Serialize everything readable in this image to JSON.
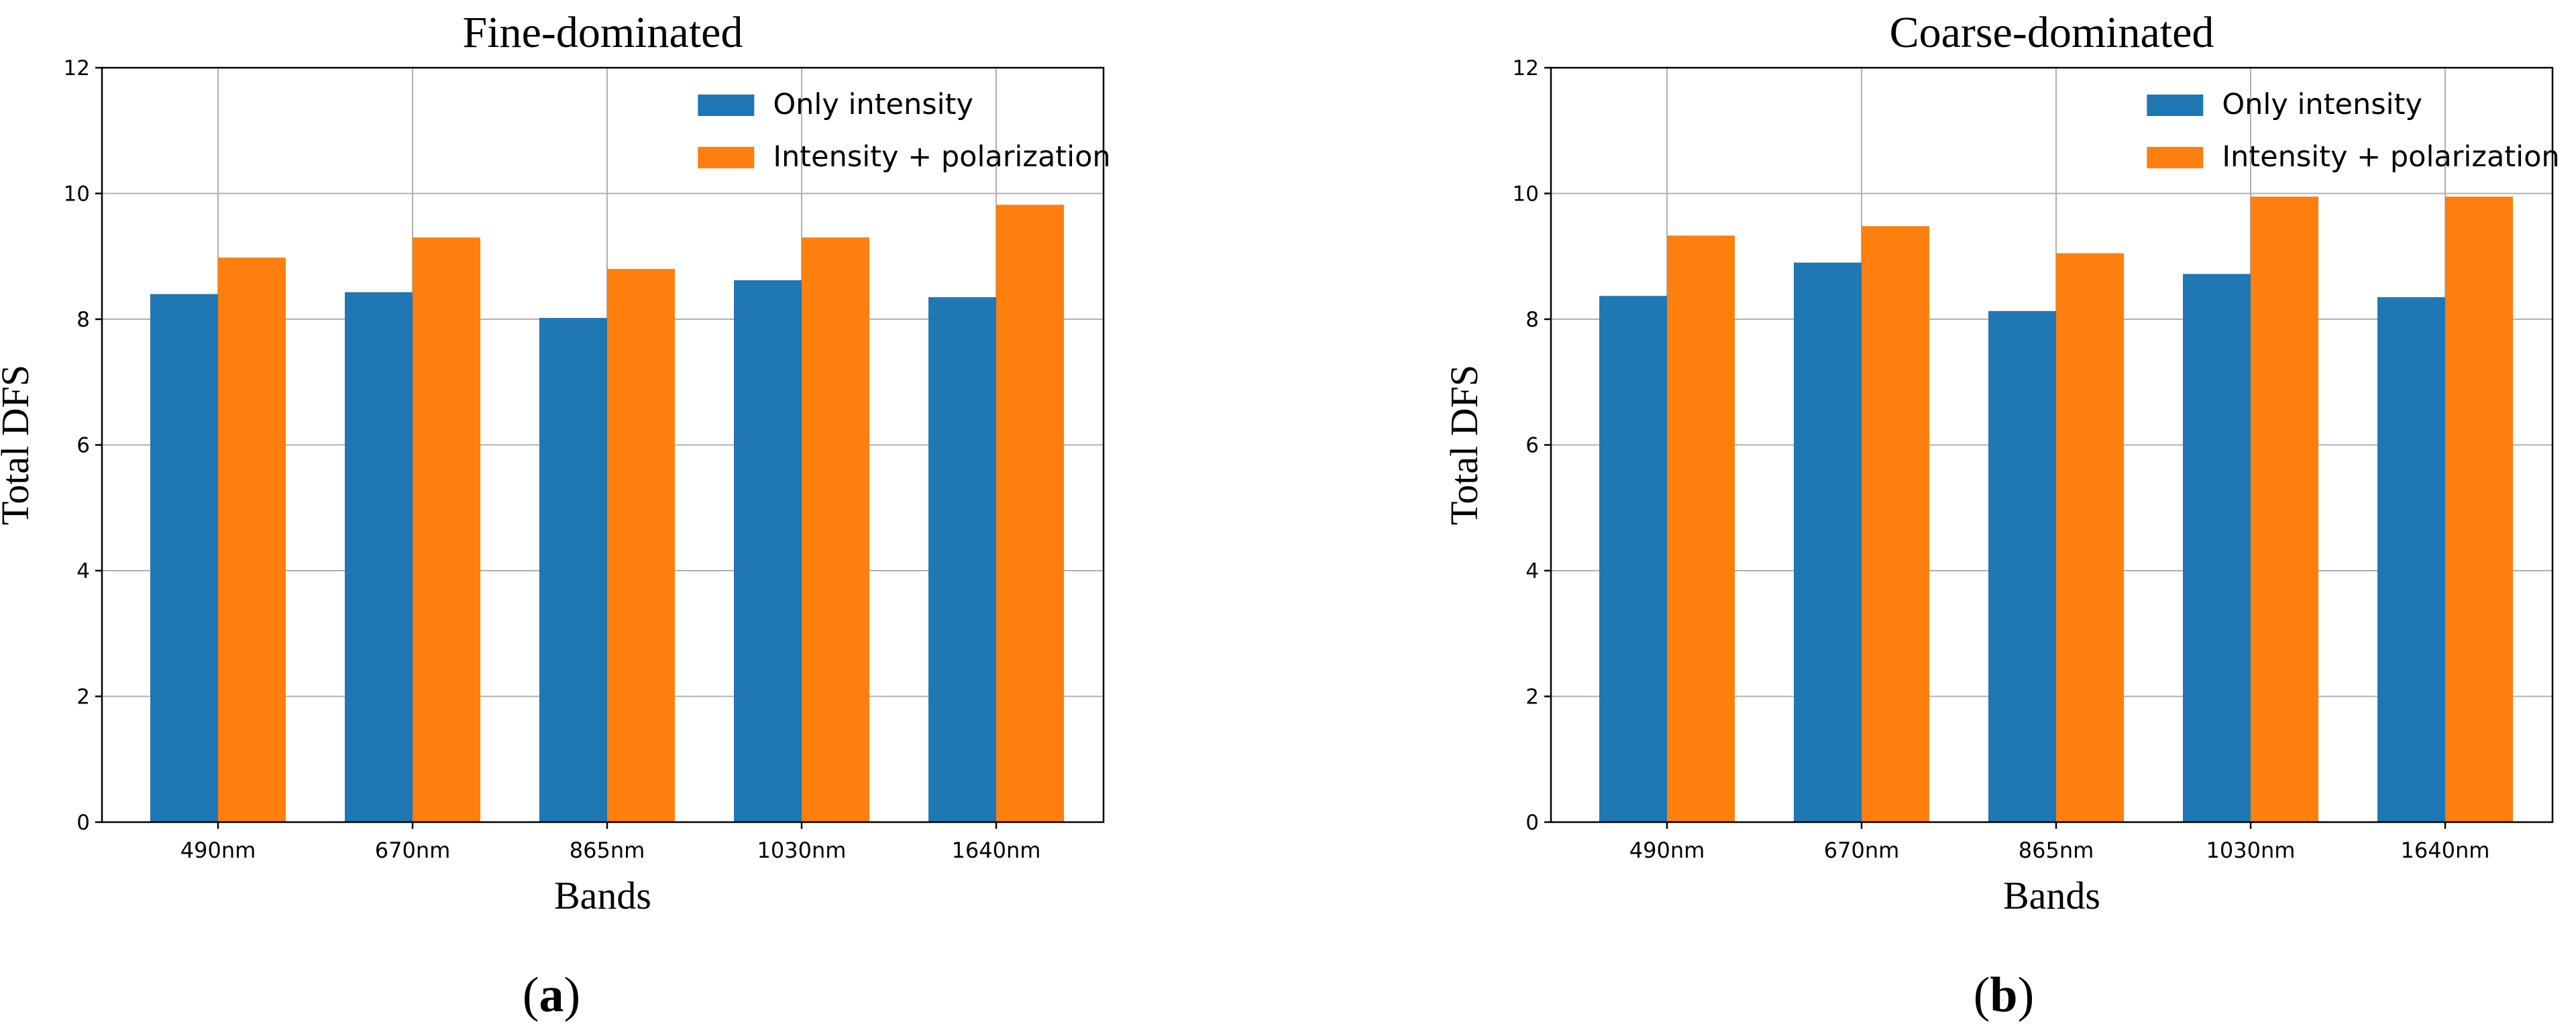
{
  "chart_data": [
    {
      "type": "bar",
      "title": "Fine-dominated",
      "xlabel": "Bands",
      "ylabel": "Total DFS",
      "ylim": [
        0,
        12
      ],
      "yticks": [
        0,
        2,
        4,
        6,
        8,
        10,
        12
      ],
      "grid": true,
      "legend_position": "top-right",
      "categories": [
        "490nm",
        "670nm",
        "865nm",
        "1030nm",
        "1640nm"
      ],
      "series": [
        {
          "name": "Only intensity",
          "color": "#1f77b4",
          "values": [
            8.4,
            8.43,
            8.02,
            8.62,
            8.35
          ]
        },
        {
          "name": "Intensity + polarization",
          "color": "#ff7f0e",
          "values": [
            8.98,
            9.3,
            8.8,
            9.3,
            9.82
          ]
        }
      ],
      "caption": "(a)"
    },
    {
      "type": "bar",
      "title": "Coarse-dominated",
      "xlabel": "Bands",
      "ylabel": "Total DFS",
      "ylim": [
        0,
        12
      ],
      "yticks": [
        0,
        2,
        4,
        6,
        8,
        10,
        12
      ],
      "grid": true,
      "legend_position": "top-right",
      "categories": [
        "490nm",
        "670nm",
        "865nm",
        "1030nm",
        "1640nm"
      ],
      "series": [
        {
          "name": "Only intensity",
          "color": "#1f77b4",
          "values": [
            8.37,
            8.9,
            8.13,
            8.72,
            8.35
          ]
        },
        {
          "name": "Intensity + polarization",
          "color": "#ff7f0e",
          "values": [
            9.33,
            9.48,
            9.05,
            9.95,
            9.95
          ]
        }
      ],
      "caption": "(b)"
    }
  ]
}
